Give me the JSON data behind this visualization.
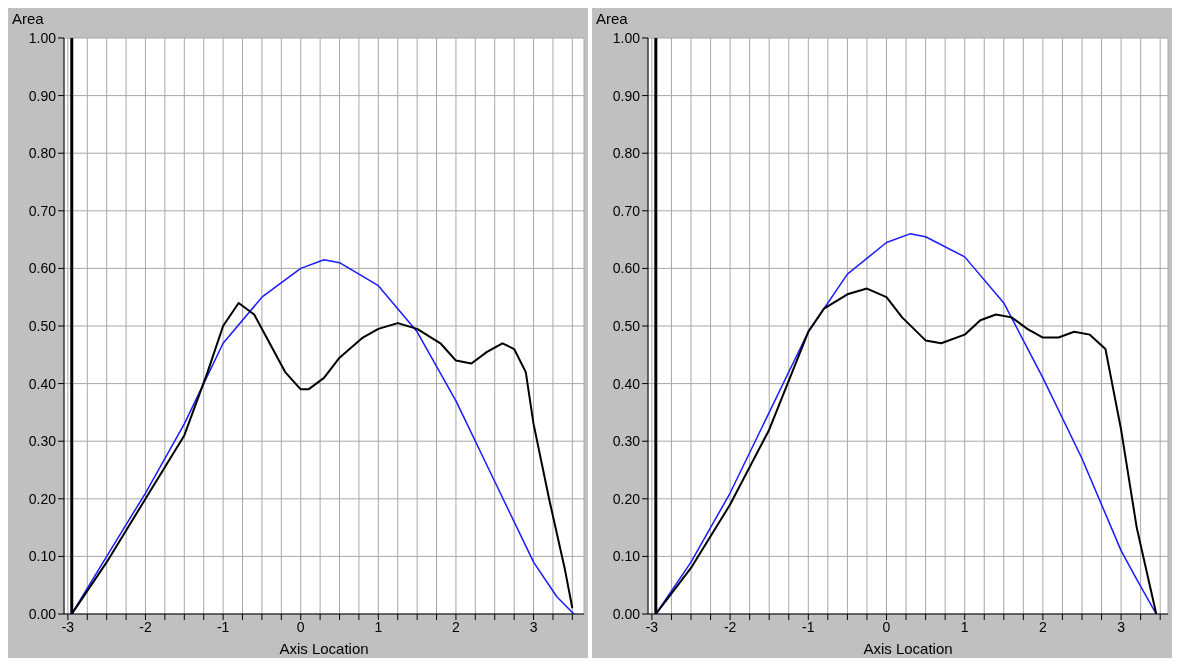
{
  "chart_data": [
    {
      "type": "line",
      "ylabel": "Area",
      "xlabel": "Axis Location",
      "xlim": [
        -3.05,
        3.65
      ],
      "ylim": [
        0,
        1
      ],
      "xticks": [
        -3,
        {
          "value": -2.75,
          "label": null
        },
        {
          "value": -2.5,
          "label": null
        },
        {
          "value": -2.25,
          "label": null
        },
        -2,
        {
          "value": -1.75,
          "label": null
        },
        {
          "value": -1.5,
          "label": null
        },
        {
          "value": -1.25,
          "label": null
        },
        -1,
        {
          "value": -0.75,
          "label": null
        },
        {
          "value": -0.5,
          "label": null
        },
        {
          "value": -0.25,
          "label": null
        },
        0,
        {
          "value": 0.25,
          "label": null
        },
        {
          "value": 0.5,
          "label": null
        },
        {
          "value": 0.75,
          "label": null
        },
        1,
        {
          "value": 1.25,
          "label": null
        },
        {
          "value": 1.5,
          "label": null
        },
        {
          "value": 1.75,
          "label": null
        },
        2,
        {
          "value": 2.25,
          "label": null
        },
        {
          "value": 2.5,
          "label": null
        },
        {
          "value": 2.75,
          "label": null
        },
        3,
        {
          "value": 3.25,
          "label": null
        },
        {
          "value": 3.5,
          "label": null
        }
      ],
      "yticks": [
        {
          "value": 0,
          "label": "0.00"
        },
        {
          "value": 0.1,
          "label": "0.10"
        },
        {
          "value": 0.2,
          "label": "0.20"
        },
        {
          "value": 0.3,
          "label": "0.30"
        },
        {
          "value": 0.4,
          "label": "0.40"
        },
        {
          "value": 0.5,
          "label": "0.50"
        },
        {
          "value": 0.6,
          "label": "0.60"
        },
        {
          "value": 0.7,
          "label": "0.70"
        },
        {
          "value": 0.8,
          "label": "0.80"
        },
        {
          "value": 0.9,
          "label": "0.90"
        },
        {
          "value": 1,
          "label": "1.00"
        }
      ],
      "grid": true,
      "marker": "none",
      "ref_lines": [
        {
          "axis": "x",
          "value": -2.95,
          "color": "#000000"
        }
      ],
      "series": [
        {
          "color": "#1a1aff",
          "x": [
            -2.95,
            -2.5,
            -2,
            -1.5,
            -1.25,
            -1,
            -0.5,
            0,
            0.3,
            0.5,
            1,
            1.5,
            2,
            2.5,
            3,
            3.3,
            3.52
          ],
          "values": [
            0,
            0.1,
            0.21,
            0.33,
            0.4,
            0.47,
            0.55,
            0.6,
            0.615,
            0.61,
            0.57,
            0.49,
            0.37,
            0.23,
            0.09,
            0.03,
            0
          ]
        },
        {
          "color": "#000000",
          "x": [
            -2.95,
            -2.5,
            -2,
            -1.5,
            -1.2,
            -1,
            -0.8,
            -0.6,
            -0.4,
            -0.2,
            0,
            0.1,
            0.3,
            0.5,
            0.8,
            1,
            1.25,
            1.5,
            1.8,
            2,
            2.2,
            2.4,
            2.6,
            2.75,
            2.9,
            3,
            3.2,
            3.4,
            3.5
          ],
          "values": [
            0,
            0.09,
            0.2,
            0.31,
            0.42,
            0.5,
            0.54,
            0.52,
            0.47,
            0.42,
            0.39,
            0.39,
            0.41,
            0.445,
            0.48,
            0.495,
            0.505,
            0.495,
            0.47,
            0.44,
            0.435,
            0.455,
            0.47,
            0.46,
            0.42,
            0.33,
            0.2,
            0.08,
            0.01
          ]
        }
      ]
    },
    {
      "type": "line",
      "ylabel": "Area",
      "xlabel": "Axis Location",
      "xlim": [
        -3.05,
        3.6
      ],
      "ylim": [
        0,
        1
      ],
      "xticks": [
        -3,
        {
          "value": -2.75,
          "label": null
        },
        {
          "value": -2.5,
          "label": null
        },
        {
          "value": -2.25,
          "label": null
        },
        -2,
        {
          "value": -1.75,
          "label": null
        },
        {
          "value": -1.5,
          "label": null
        },
        {
          "value": -1.25,
          "label": null
        },
        -1,
        {
          "value": -0.75,
          "label": null
        },
        {
          "value": -0.5,
          "label": null
        },
        {
          "value": -0.25,
          "label": null
        },
        0,
        {
          "value": 0.25,
          "label": null
        },
        {
          "value": 0.5,
          "label": null
        },
        {
          "value": 0.75,
          "label": null
        },
        1,
        {
          "value": 1.25,
          "label": null
        },
        {
          "value": 1.5,
          "label": null
        },
        {
          "value": 1.75,
          "label": null
        },
        2,
        {
          "value": 2.25,
          "label": null
        },
        {
          "value": 2.5,
          "label": null
        },
        {
          "value": 2.75,
          "label": null
        },
        3,
        {
          "value": 3.25,
          "label": null
        },
        {
          "value": 3.5,
          "label": null
        }
      ],
      "yticks": [
        {
          "value": 0,
          "label": "0.00"
        },
        {
          "value": 0.1,
          "label": "0.10"
        },
        {
          "value": 0.2,
          "label": "0.20"
        },
        {
          "value": 0.3,
          "label": "0.30"
        },
        {
          "value": 0.4,
          "label": "0.40"
        },
        {
          "value": 0.5,
          "label": "0.50"
        },
        {
          "value": 0.6,
          "label": "0.60"
        },
        {
          "value": 0.7,
          "label": "0.70"
        },
        {
          "value": 0.8,
          "label": "0.80"
        },
        {
          "value": 0.9,
          "label": "0.90"
        },
        {
          "value": 1,
          "label": "1.00"
        }
      ],
      "grid": true,
      "marker": "none",
      "ref_lines": [
        {
          "axis": "x",
          "value": -2.95,
          "color": "#000000"
        }
      ],
      "series": [
        {
          "color": "#1a1aff",
          "x": [
            -2.95,
            -2.5,
            -2,
            -1.5,
            -1,
            -0.5,
            0,
            0.3,
            0.5,
            1,
            1.5,
            2,
            2.5,
            3,
            3.2,
            3.45
          ],
          "values": [
            0,
            0.09,
            0.21,
            0.35,
            0.49,
            0.59,
            0.645,
            0.66,
            0.655,
            0.62,
            0.54,
            0.41,
            0.27,
            0.11,
            0.06,
            0
          ]
        },
        {
          "color": "#000000",
          "x": [
            -2.95,
            -2.5,
            -2,
            -1.5,
            -1,
            -0.8,
            -0.5,
            -0.25,
            0,
            0.2,
            0.5,
            0.7,
            1,
            1.2,
            1.4,
            1.6,
            1.8,
            2,
            2.2,
            2.4,
            2.6,
            2.8,
            3,
            3.2,
            3.4,
            3.45
          ],
          "values": [
            0,
            0.08,
            0.19,
            0.32,
            0.49,
            0.53,
            0.555,
            0.565,
            0.55,
            0.515,
            0.475,
            0.47,
            0.485,
            0.51,
            0.52,
            0.515,
            0.495,
            0.48,
            0.48,
            0.49,
            0.485,
            0.46,
            0.32,
            0.15,
            0.03,
            0
          ]
        }
      ]
    }
  ]
}
